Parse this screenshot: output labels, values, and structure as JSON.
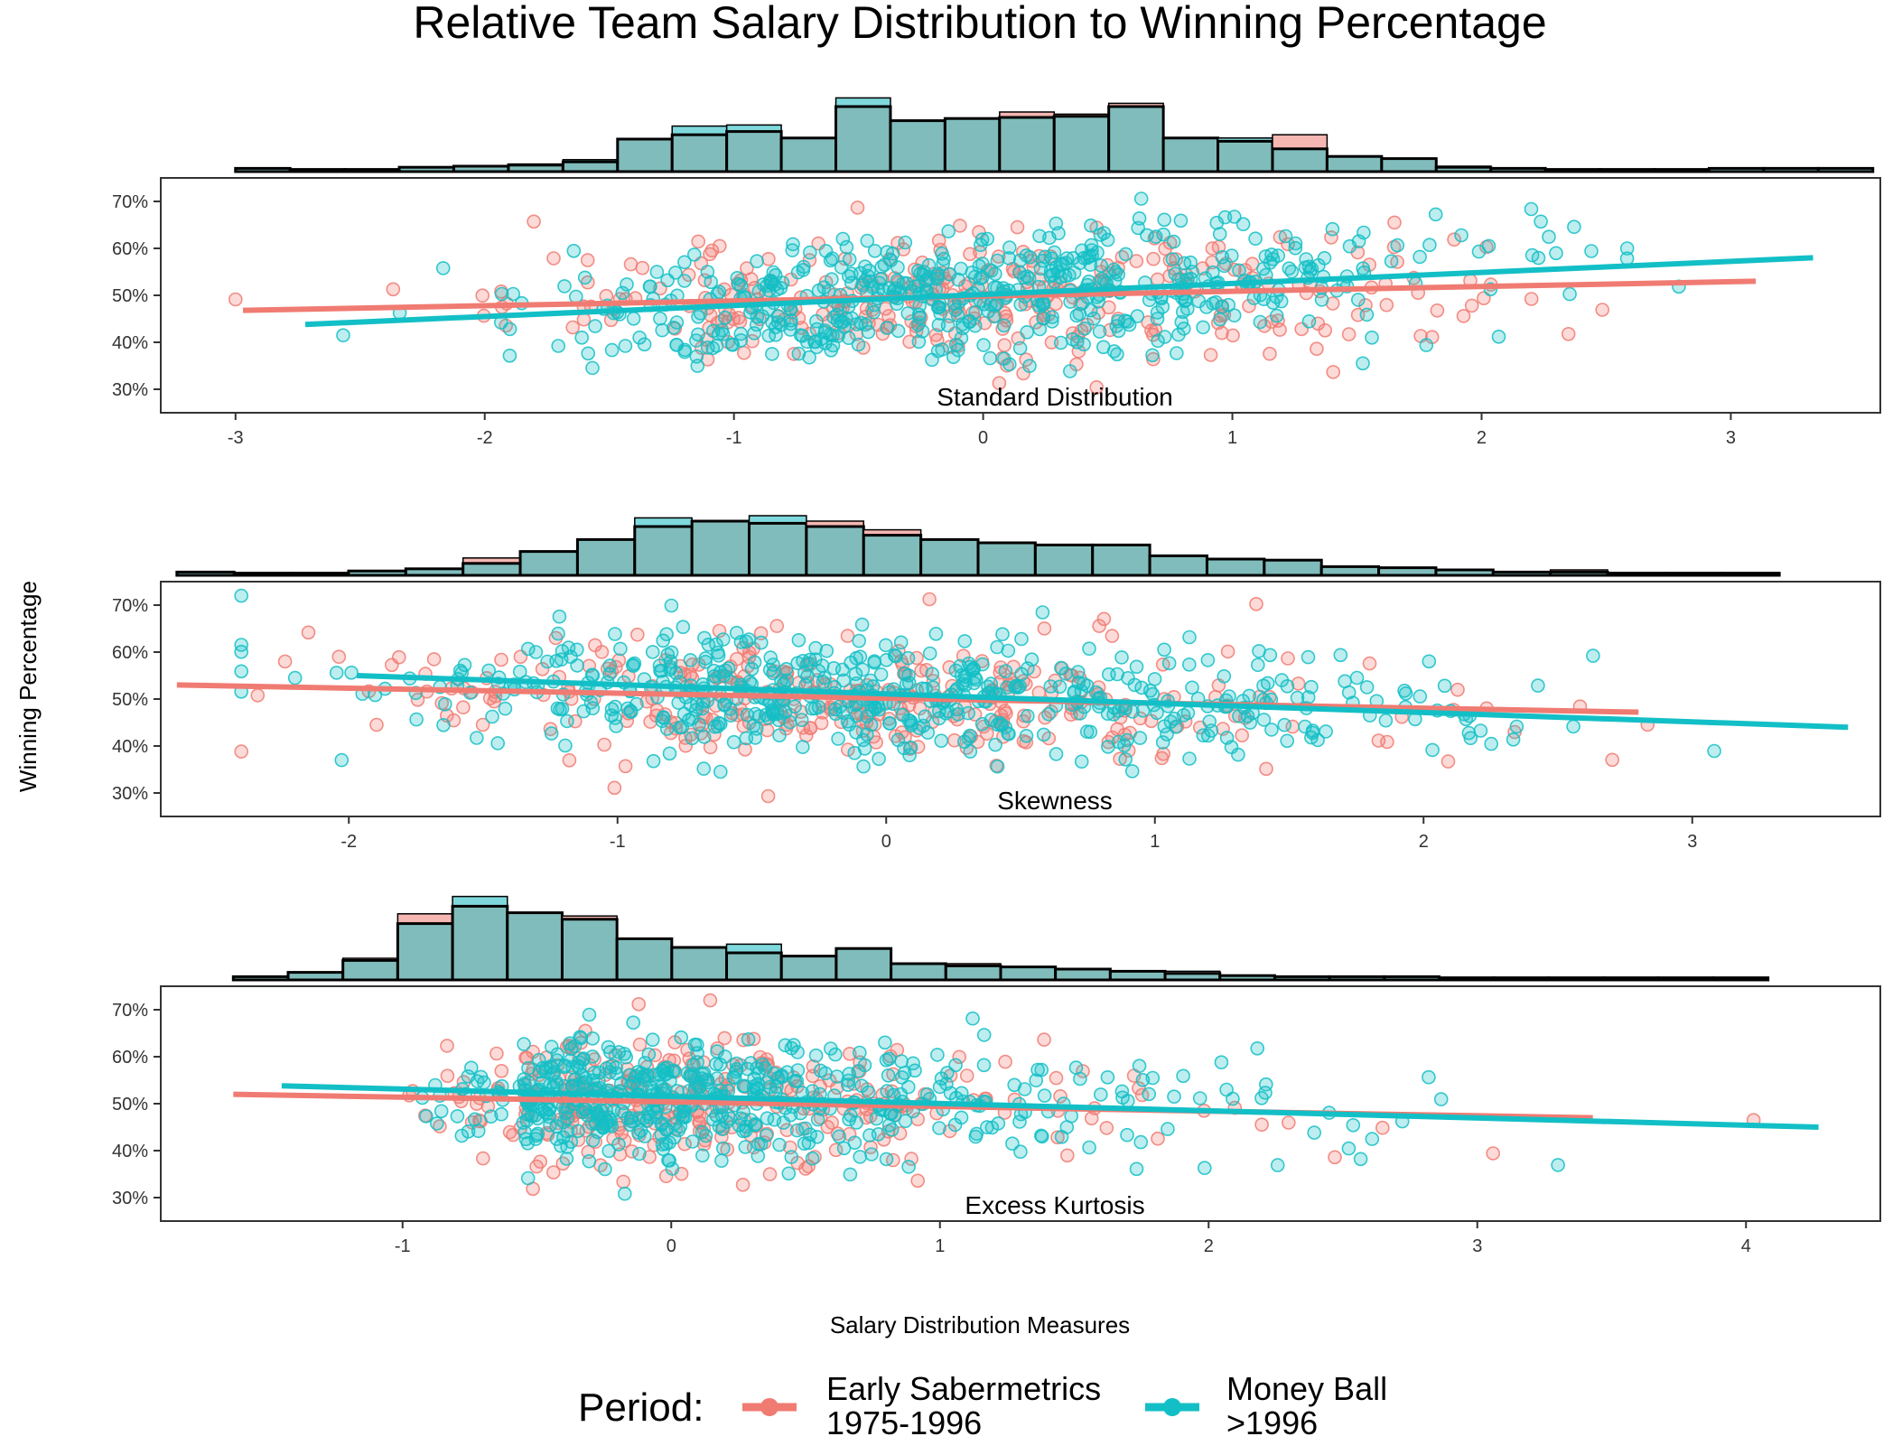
{
  "title": "Relative Team Salary Distribution to Winning Percentage",
  "ylabel": "Winning Percentage",
  "xlabel": "Salary Distribution Measures",
  "legend": {
    "title": "Period:",
    "entries": [
      {
        "line1": "Early Sabermetrics",
        "line2": "1975-1996",
        "color": "#f07b72"
      },
      {
        "line1": "Money Ball",
        "line2": ">1996",
        "color": "#13bfc6"
      }
    ]
  },
  "colors": {
    "early": "#f07b72",
    "moneyball": "#13bfc6",
    "overlap": "#80bcbb",
    "early_fill": "#f6b7b2",
    "moneyball_fill": "#7fd9dc"
  },
  "chart_data": [
    {
      "type": "scatter",
      "panel_label": "Standard Distribution",
      "xlim": [
        -3.3,
        3.6
      ],
      "ylim": [
        0.25,
        0.75
      ],
      "x_ticks": [
        -3,
        -2,
        -1,
        0,
        1,
        2,
        3
      ],
      "y_ticks": [
        0.3,
        0.4,
        0.5,
        0.6,
        0.7
      ],
      "y_tick_labels": [
        "30%",
        "40%",
        "50%",
        "60%",
        "70%"
      ],
      "series": [
        {
          "name": "Early Sabermetrics 1975-1996",
          "trend": {
            "x": [
              -2.97,
              3.1
            ],
            "y": [
              0.468,
              0.53
            ]
          }
        },
        {
          "name": "Money Ball >1996",
          "trend": {
            "x": [
              -2.72,
              3.33
            ],
            "y": [
              0.438,
              0.58
            ]
          }
        }
      ],
      "histogram": {
        "bin_start": -3.0,
        "bin_width": 0.219,
        "overlap": [
          3,
          2,
          2,
          4,
          5,
          6,
          9,
          30,
          34,
          37,
          31,
          60,
          47,
          49,
          50,
          51,
          60,
          31,
          28,
          21,
          14,
          12,
          4,
          3,
          2,
          2,
          2,
          3,
          3,
          3
        ],
        "early_extra": [
          0,
          0,
          0,
          0,
          0,
          1,
          0,
          0,
          0,
          0,
          0,
          0,
          0,
          0,
          5,
          2,
          3,
          0,
          0,
          13,
          0,
          0,
          1,
          0,
          0,
          0,
          0,
          0,
          0,
          0
        ],
        "moneyball_extra": [
          0,
          0,
          0,
          0,
          0,
          0,
          2,
          0,
          8,
          6,
          0,
          8,
          0,
          0,
          0,
          0,
          0,
          0,
          3,
          0,
          0,
          0,
          0,
          0,
          0,
          0,
          0,
          0,
          0,
          0
        ]
      }
    },
    {
      "type": "scatter",
      "panel_label": "Skewness",
      "xlim": [
        -2.7,
        3.7
      ],
      "ylim": [
        0.25,
        0.75
      ],
      "x_ticks": [
        -2,
        -1,
        0,
        1,
        2,
        3
      ],
      "y_ticks": [
        0.3,
        0.4,
        0.5,
        0.6,
        0.7
      ],
      "y_tick_labels": [
        "30%",
        "40%",
        "50%",
        "60%",
        "70%"
      ],
      "series": [
        {
          "name": "Early Sabermetrics 1975-1996",
          "trend": {
            "x": [
              -2.64,
              2.8
            ],
            "y": [
              0.53,
              0.472
            ]
          }
        },
        {
          "name": "Money Ball >1996",
          "trend": {
            "x": [
              -1.97,
              3.58
            ],
            "y": [
              0.55,
              0.44
            ]
          }
        }
      ],
      "histogram": {
        "bin_start": -2.64,
        "bin_width": 0.213,
        "overlap": [
          3,
          2,
          2,
          4,
          6,
          11,
          22,
          33,
          45,
          50,
          48,
          45,
          37,
          33,
          30,
          28,
          28,
          18,
          15,
          14,
          8,
          7,
          5,
          3,
          3,
          2,
          2,
          2
        ],
        "early_extra": [
          0,
          0,
          0,
          0,
          0,
          5,
          0,
          0,
          0,
          0,
          0,
          5,
          5,
          0,
          0,
          0,
          0,
          0,
          0,
          0,
          0,
          0,
          0,
          0,
          2,
          0,
          0,
          0
        ],
        "moneyball_extra": [
          0,
          0,
          0,
          0,
          0,
          0,
          0,
          0,
          8,
          0,
          7,
          0,
          0,
          0,
          0,
          0,
          0,
          0,
          0,
          0,
          0,
          0,
          0,
          0,
          0,
          0,
          0,
          0
        ]
      }
    },
    {
      "type": "scatter",
      "panel_label": "Excess Kurtosis",
      "xlim": [
        -1.9,
        4.5
      ],
      "ylim": [
        0.25,
        0.75
      ],
      "x_ticks": [
        -1,
        0,
        1,
        2,
        3,
        4
      ],
      "y_ticks": [
        0.3,
        0.4,
        0.5,
        0.6,
        0.7
      ],
      "y_tick_labels": [
        "30%",
        "40%",
        "50%",
        "60%",
        "70%"
      ],
      "series": [
        {
          "name": "Early Sabermetrics 1975-1996",
          "trend": {
            "x": [
              -1.63,
              3.43
            ],
            "y": [
              0.52,
              0.47
            ]
          }
        },
        {
          "name": "Money Ball >1996",
          "trend": {
            "x": [
              -1.45,
              4.27
            ],
            "y": [
              0.538,
              0.45
            ]
          }
        }
      ],
      "histogram": {
        "bin_start": -1.63,
        "bin_width": 0.204,
        "overlap": [
          3,
          7,
          18,
          52,
          68,
          62,
          56,
          38,
          30,
          25,
          22,
          29,
          15,
          13,
          12,
          10,
          8,
          6,
          4,
          3,
          3,
          3,
          2,
          2,
          2,
          2,
          2,
          2
        ],
        "early_extra": [
          0,
          0,
          2,
          9,
          0,
          0,
          3,
          0,
          0,
          0,
          0,
          0,
          0,
          2,
          0,
          0,
          0,
          2,
          0,
          0,
          0,
          0,
          0,
          0,
          0,
          0,
          0,
          0
        ],
        "moneyball_extra": [
          0,
          0,
          0,
          0,
          9,
          0,
          0,
          0,
          0,
          8,
          0,
          0,
          0,
          0,
          0,
          0,
          0,
          0,
          0,
          0,
          0,
          0,
          0,
          0,
          0,
          0,
          0,
          0
        ]
      }
    }
  ]
}
